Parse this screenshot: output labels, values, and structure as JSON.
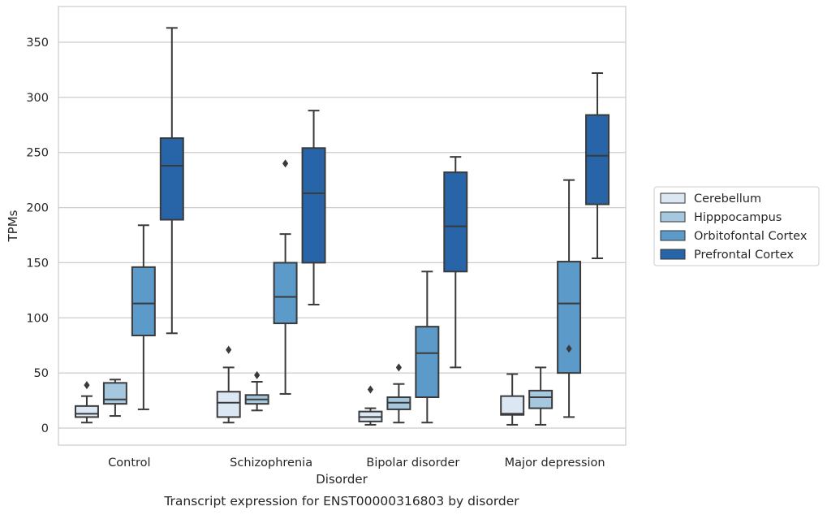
{
  "chart_data": {
    "type": "box",
    "title": "",
    "caption": "Transcript expression for ENST00000316803 by disorder",
    "xlabel": "Disorder",
    "ylabel": "TPMs",
    "ylim": [
      -15,
      385
    ],
    "yticks": [
      0,
      50,
      100,
      150,
      200,
      250,
      300,
      350
    ],
    "grid": "horizontal",
    "legend_position": "right",
    "categories": [
      "Control",
      "Schizophrenia",
      "Bipolar disorder",
      "Major depression"
    ],
    "series": [
      {
        "name": "Cerebellum",
        "color": "#dbe7f3",
        "boxes": [
          {
            "min": 5,
            "q1": 10,
            "median": 13,
            "q3": 20,
            "max": 29,
            "outliers": [
              39
            ]
          },
          {
            "min": 5,
            "q1": 10,
            "median": 23,
            "q3": 33,
            "max": 55,
            "outliers": [
              71
            ]
          },
          {
            "min": 3,
            "q1": 6,
            "median": 10,
            "q3": 15,
            "max": 18,
            "outliers": [
              35
            ]
          },
          {
            "min": 3,
            "q1": 12,
            "median": 13,
            "q3": 29,
            "max": 49,
            "outliers": []
          }
        ]
      },
      {
        "name": "Hipppocampus",
        "color": "#a6c8df",
        "boxes": [
          {
            "min": 11,
            "q1": 22,
            "median": 26,
            "q3": 41,
            "max": 44,
            "outliers": []
          },
          {
            "min": 16,
            "q1": 22,
            "median": 26,
            "q3": 30,
            "max": 42,
            "outliers": [
              48
            ]
          },
          {
            "min": 5,
            "q1": 17,
            "median": 23,
            "q3": 28,
            "max": 40,
            "outliers": [
              55
            ]
          },
          {
            "min": 3,
            "q1": 18,
            "median": 28,
            "q3": 34,
            "max": 55,
            "outliers": []
          }
        ]
      },
      {
        "name": "Orbitofontal Cortex",
        "color": "#5b9ac9",
        "boxes": [
          {
            "min": 17,
            "q1": 84,
            "median": 113,
            "q3": 146,
            "max": 184,
            "outliers": []
          },
          {
            "min": 31,
            "q1": 95,
            "median": 119,
            "q3": 150,
            "max": 176,
            "outliers": [
              240
            ]
          },
          {
            "min": 5,
            "q1": 28,
            "median": 68,
            "q3": 92,
            "max": 142,
            "outliers": []
          },
          {
            "min": 10,
            "q1": 50,
            "median": 113,
            "q3": 151,
            "max": 225,
            "outliers": [
              72
            ]
          }
        ]
      },
      {
        "name": "Prefrontal Cortex",
        "color": "#2765a8",
        "boxes": [
          {
            "min": 86,
            "q1": 189,
            "median": 238,
            "q3": 263,
            "max": 363,
            "outliers": []
          },
          {
            "min": 112,
            "q1": 150,
            "median": 213,
            "q3": 254,
            "max": 288,
            "outliers": []
          },
          {
            "min": 55,
            "q1": 142,
            "median": 183,
            "q3": 232,
            "max": 246,
            "outliers": []
          },
          {
            "min": 154,
            "q1": 203,
            "median": 247,
            "q3": 284,
            "max": 322,
            "outliers": []
          }
        ]
      }
    ]
  }
}
